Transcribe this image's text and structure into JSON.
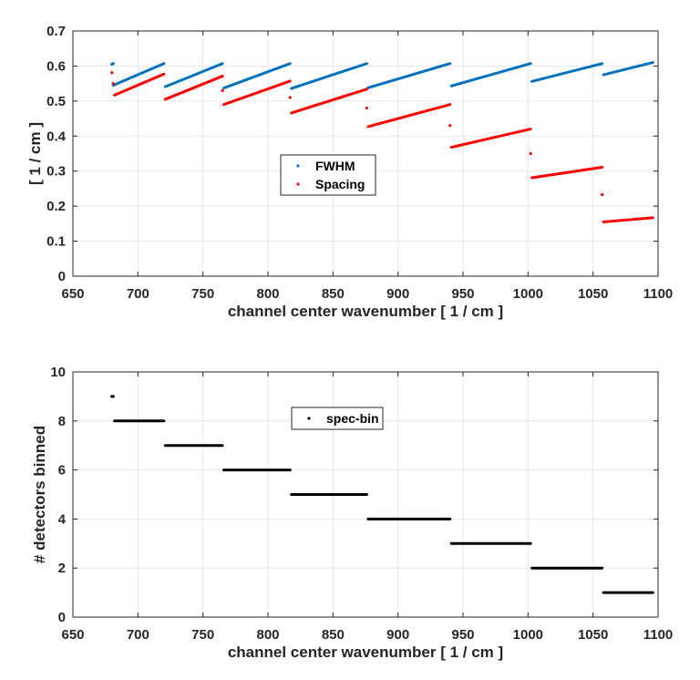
{
  "chart_data": [
    {
      "type": "scatter",
      "xlabel": "channel center wavenumber [ 1 / cm ]",
      "ylabel": "[ 1 / cm ]",
      "xlim": [
        650,
        1100
      ],
      "ylim": [
        0,
        0.7
      ],
      "xticks": [
        "650",
        "700",
        "750",
        "800",
        "850",
        "900",
        "950",
        "1000",
        "1050",
        "1100"
      ],
      "yticks": [
        "0",
        "0.1",
        "0.2",
        "0.3",
        "0.4",
        "0.5",
        "0.6",
        "0.7"
      ],
      "grid": true,
      "legend": {
        "placement": "center",
        "entries": [
          "FWHM",
          "Spacing"
        ]
      },
      "series": [
        {
          "name": "FWHM",
          "color": "#0072BD",
          "segments": [
            [
              [
                681,
                0.545
              ],
              [
                720,
                0.607
              ]
            ],
            [
              [
                721,
                0.541
              ],
              [
                765,
                0.607
              ]
            ],
            [
              [
                766,
                0.537
              ],
              [
                817,
                0.607
              ]
            ],
            [
              [
                818,
                0.536
              ],
              [
                876,
                0.607
              ]
            ],
            [
              [
                877,
                0.538
              ],
              [
                940,
                0.607
              ]
            ],
            [
              [
                941,
                0.543
              ],
              [
                1002,
                0.607
              ]
            ],
            [
              [
                1003,
                0.556
              ],
              [
                1057,
                0.607
              ]
            ],
            [
              [
                1058,
                0.575
              ],
              [
                1096,
                0.61
              ]
            ]
          ],
          "points": [
            [
              680,
              0.605
            ],
            [
              681,
              0.607
            ]
          ]
        },
        {
          "name": "Spacing",
          "color": "#FF0000",
          "segments": [
            [
              [
                682,
                0.517
              ],
              [
                720,
                0.577
              ]
            ],
            [
              [
                721,
                0.505
              ],
              [
                765,
                0.571
              ]
            ],
            [
              [
                766,
                0.49
              ],
              [
                817,
                0.557
              ]
            ],
            [
              [
                818,
                0.466
              ],
              [
                876,
                0.534
              ]
            ],
            [
              [
                877,
                0.427
              ],
              [
                940,
                0.49
              ]
            ],
            [
              [
                941,
                0.368
              ],
              [
                1002,
                0.42
              ]
            ],
            [
              [
                1003,
                0.281
              ],
              [
                1057,
                0.311
              ]
            ],
            [
              [
                1058,
                0.155
              ],
              [
                1096,
                0.167
              ]
            ]
          ],
          "points": [
            [
              680,
              0.581
            ],
            [
              681,
              0.55
            ],
            [
              765,
              0.53
            ],
            [
              817,
              0.51
            ],
            [
              876,
              0.48
            ],
            [
              940,
              0.43
            ],
            [
              1002,
              0.35
            ],
            [
              1057,
              0.233
            ]
          ]
        }
      ]
    },
    {
      "type": "scatter",
      "xlabel": "channel center wavenumber [ 1 / cm ]",
      "ylabel": "# detectors binned",
      "xlim": [
        650,
        1100
      ],
      "ylim": [
        0,
        10
      ],
      "xticks": [
        "650",
        "700",
        "750",
        "800",
        "850",
        "900",
        "950",
        "1000",
        "1050",
        "1100"
      ],
      "yticks": [
        "0",
        "2",
        "4",
        "6",
        "8",
        "10"
      ],
      "grid": true,
      "legend": {
        "placement": "center-top",
        "entries": [
          "spec-bin"
        ]
      },
      "series": [
        {
          "name": "spec-bin",
          "color": "#000000",
          "segments": [
            [
              [
                682,
                8
              ],
              [
                720,
                8
              ]
            ],
            [
              [
                721,
                7
              ],
              [
                765,
                7
              ]
            ],
            [
              [
                766,
                6
              ],
              [
                817,
                6
              ]
            ],
            [
              [
                818,
                5
              ],
              [
                876,
                5
              ]
            ],
            [
              [
                877,
                4
              ],
              [
                940,
                4
              ]
            ],
            [
              [
                941,
                3
              ],
              [
                1002,
                3
              ]
            ],
            [
              [
                1003,
                2
              ],
              [
                1057,
                2
              ]
            ],
            [
              [
                1058,
                1
              ],
              [
                1096,
                1
              ]
            ]
          ],
          "points": [
            [
              680,
              9
            ],
            [
              681,
              9
            ]
          ]
        }
      ]
    }
  ]
}
